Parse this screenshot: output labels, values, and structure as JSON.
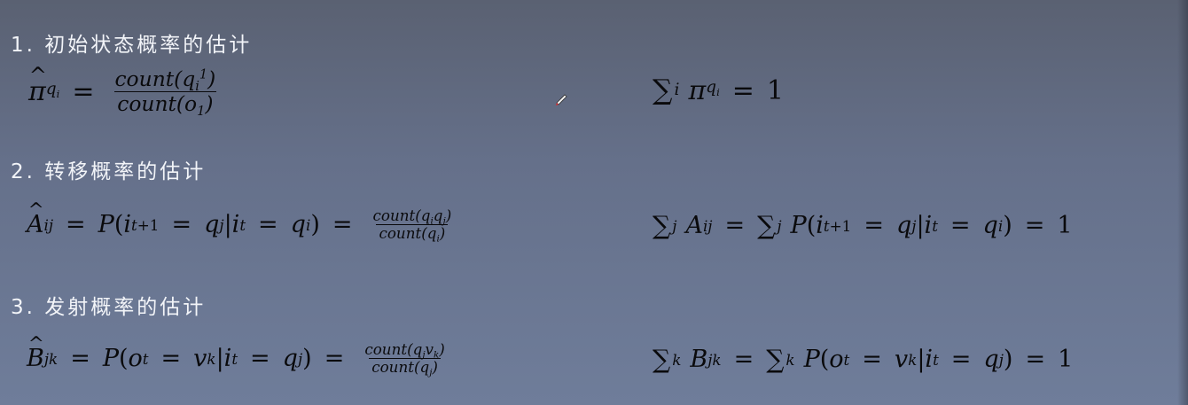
{
  "section1": {
    "heading": "1. 初始状态概率的估计"
  },
  "section2": {
    "heading": "2. 转移概率的估计"
  },
  "section3": {
    "heading": "3. 发射概率的估计"
  },
  "formula_text": {
    "pi": "π",
    "count_q1": "count(q",
    "count_o1": "count(o",
    "count_qq": "count(q",
    "count_qi": "count(q",
    "count_qv": "count(q",
    "count_qj": "count(q",
    "P": "P",
    "one": "1",
    "sum": "∑",
    "A": "A",
    "B": "B"
  },
  "icons": {
    "cursor": "pencil-cursor-icon"
  },
  "colors": {
    "background_top": "#5a6172",
    "background_bottom": "#6f7d9a",
    "heading": "#f2f4f8",
    "formula": "#0a0a0c"
  }
}
